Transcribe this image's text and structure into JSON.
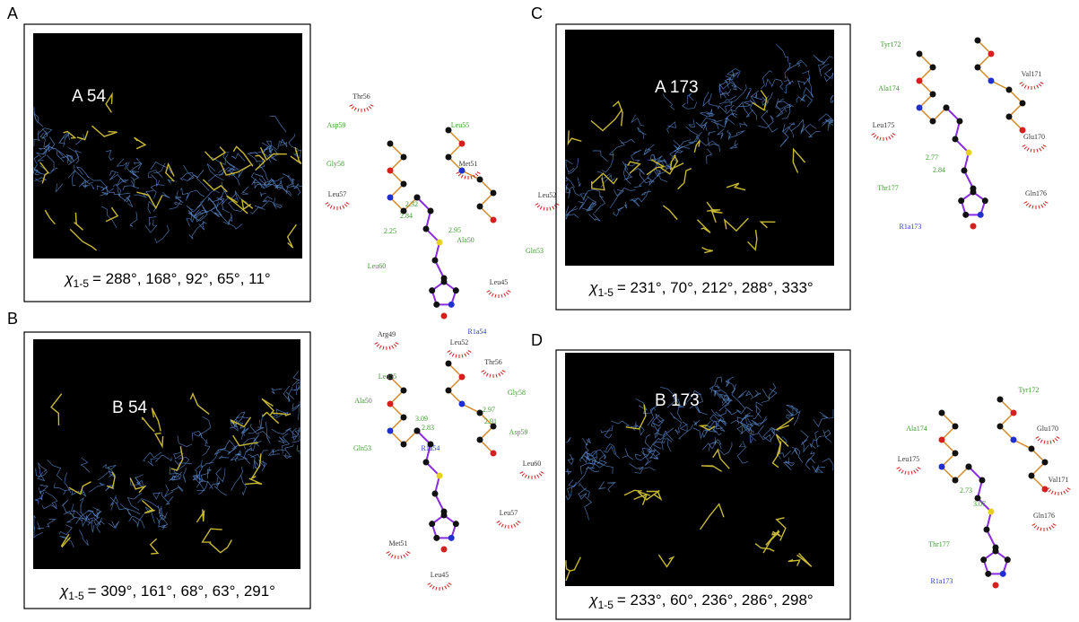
{
  "panels": [
    {
      "letter": "A",
      "map_label": "A 54",
      "chi": {
        "symbol": "χ",
        "subscript": "1-5",
        "values": "= 288°, 168°, 92°, 65°, 11°"
      },
      "ligplot": {
        "ligand": "R1a54",
        "residues": [
          {
            "label": "Thr56",
            "color": "#333333"
          },
          {
            "label": "Asp59",
            "color": "#3a9a2a"
          },
          {
            "label": "Leu55",
            "color": "#3a9a2a"
          },
          {
            "label": "Met51",
            "color": "#333333"
          },
          {
            "label": "Gly58",
            "color": "#3a9a2a"
          },
          {
            "label": "Leu52",
            "color": "#333333"
          },
          {
            "label": "Leu57",
            "color": "#333333"
          },
          {
            "label": "Ala50",
            "color": "#3a9a2a"
          },
          {
            "label": "Gln53",
            "color": "#3a9a2a"
          },
          {
            "label": "Leu60",
            "color": "#3a9a2a"
          },
          {
            "label": "Leu45",
            "color": "#333333"
          },
          {
            "label": "Arg49",
            "color": "#333333"
          }
        ],
        "distances": [
          "2.32",
          "2.84",
          "2.25",
          "2.95"
        ]
      }
    },
    {
      "letter": "B",
      "map_label": "B 54",
      "chi": {
        "symbol": "χ",
        "subscript": "1-5",
        "values": "= 309°, 161°, 68°, 63°, 291°"
      },
      "ligplot": {
        "ligand": "R1a54",
        "residues": [
          {
            "label": "Leu52",
            "color": "#333333"
          },
          {
            "label": "Thr56",
            "color": "#333333"
          },
          {
            "label": "Leu55",
            "color": "#3a9a2a"
          },
          {
            "label": "Gly58",
            "color": "#3a9a2a"
          },
          {
            "label": "Ala50",
            "color": "#3a9a2a"
          },
          {
            "label": "Asp59",
            "color": "#3a9a2a"
          },
          {
            "label": "Gln53",
            "color": "#3a9a2a"
          },
          {
            "label": "Leu60",
            "color": "#333333"
          },
          {
            "label": "Leu57",
            "color": "#333333"
          },
          {
            "label": "Met51",
            "color": "#333333"
          },
          {
            "label": "Leu45",
            "color": "#333333"
          }
        ],
        "distances": [
          "3.09",
          "2.83",
          "2.97",
          "2.91"
        ]
      }
    },
    {
      "letter": "C",
      "map_label": "A 173",
      "chi": {
        "symbol": "χ",
        "subscript": "1-5",
        "values": "= 231°, 70°, 212°, 288°, 333°"
      },
      "ligplot": {
        "ligand": "R1a173",
        "residues": [
          {
            "label": "Tyr172",
            "color": "#3a9a2a"
          },
          {
            "label": "Val171",
            "color": "#333333"
          },
          {
            "label": "Ala174",
            "color": "#3a9a2a"
          },
          {
            "label": "Leu175",
            "color": "#333333"
          },
          {
            "label": "Glu170",
            "color": "#333333"
          },
          {
            "label": "Thr177",
            "color": "#3a9a2a"
          },
          {
            "label": "Gln176",
            "color": "#333333"
          }
        ],
        "distances": [
          "2.77",
          "2.84"
        ]
      }
    },
    {
      "letter": "D",
      "map_label": "B 173",
      "chi": {
        "symbol": "χ",
        "subscript": "1-5",
        "values": "= 233°, 60°, 236°, 286°, 298°"
      },
      "ligplot": {
        "ligand": "R1a173",
        "residues": [
          {
            "label": "Tyr172",
            "color": "#3a9a2a"
          },
          {
            "label": "Glu170",
            "color": "#333333"
          },
          {
            "label": "Ala174",
            "color": "#3a9a2a"
          },
          {
            "label": "Leu175",
            "color": "#333333"
          },
          {
            "label": "Val171",
            "color": "#333333"
          },
          {
            "label": "Gln176",
            "color": "#333333"
          },
          {
            "label": "Thr177",
            "color": "#3a9a2a"
          }
        ],
        "distances": [
          "2.73",
          "3.07"
        ]
      }
    }
  ]
}
